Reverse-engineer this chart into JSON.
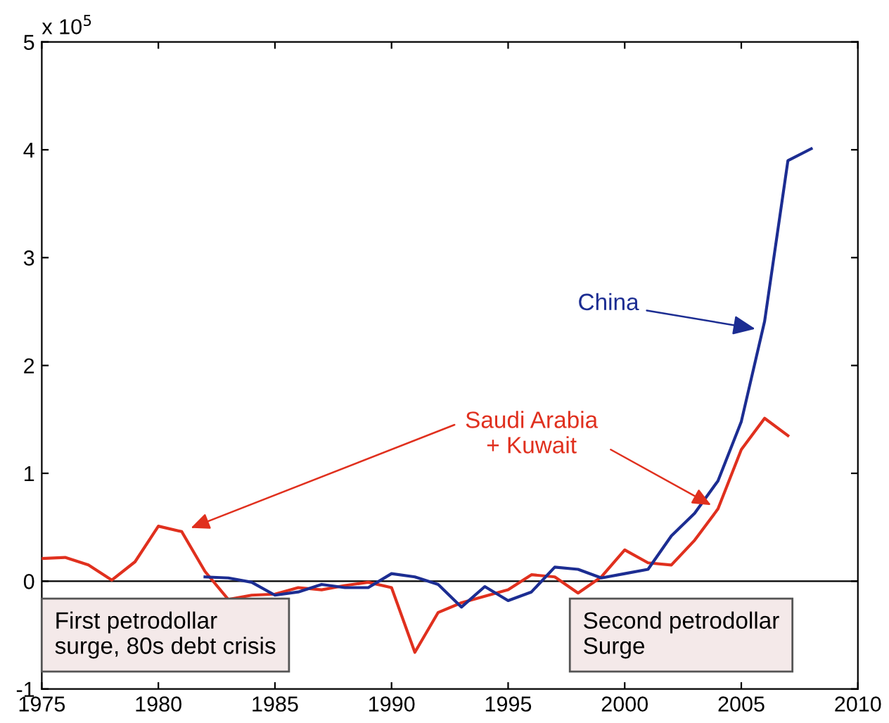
{
  "chart_data": {
    "type": "line",
    "x": [
      1975,
      1976,
      1977,
      1978,
      1979,
      1980,
      1981,
      1982,
      1983,
      1984,
      1985,
      1986,
      1987,
      1988,
      1989,
      1990,
      1991,
      1992,
      1993,
      1994,
      1995,
      1996,
      1997,
      1998,
      1999,
      2000,
      2001,
      2002,
      2003,
      2004,
      2005,
      2006,
      2007,
      2008
    ],
    "series": [
      {
        "color": "#e0301e",
        "values": [
          0.21,
          0.22,
          0.15,
          0.01,
          0.18,
          0.51,
          0.46,
          0.09,
          -0.17,
          -0.13,
          -0.12,
          -0.06,
          -0.08,
          -0.04,
          -0.01,
          -0.06,
          -0.66,
          -0.29,
          -0.2,
          -0.14,
          -0.08,
          0.06,
          0.04,
          -0.11,
          0.04,
          0.29,
          0.17,
          0.15,
          0.38,
          0.67,
          1.22,
          1.51,
          1.35,
          null
        ]
      },
      {
        "color": "#1c2d92",
        "values": [
          null,
          null,
          null,
          null,
          null,
          null,
          null,
          0.04,
          0.03,
          -0.01,
          -0.13,
          -0.1,
          -0.03,
          -0.06,
          -0.06,
          0.07,
          0.04,
          -0.03,
          -0.24,
          -0.05,
          -0.18,
          -0.1,
          0.13,
          0.11,
          0.03,
          0.07,
          0.11,
          0.42,
          0.63,
          0.93,
          1.48,
          2.41,
          3.9,
          4.01
        ]
      }
    ],
    "xlim": [
      1975,
      2010
    ],
    "xticks": [
      1975,
      1980,
      1985,
      1990,
      1995,
      2000,
      2005,
      2010
    ],
    "ylim": [
      -1,
      5
    ],
    "yticks": [
      -1,
      0,
      1,
      2,
      3,
      4,
      5
    ],
    "ref_lines": [
      {
        "axis": "y",
        "value": 0,
        "color": "#000000"
      }
    ],
    "annotations": [
      "x 10$^{5}$",
      {
        "text": "China",
        "x": 2005.6,
        "y": 2.34
      },
      {
        "text": "Saudi Arabia\n+ Kuwait",
        "x": 2004,
        "y": 0.67
      },
      "First petrodollar\nsurge, 80s debt crisis",
      "Second petrodollar\nSurge"
    ],
    "grid": false,
    "legend": false
  }
}
